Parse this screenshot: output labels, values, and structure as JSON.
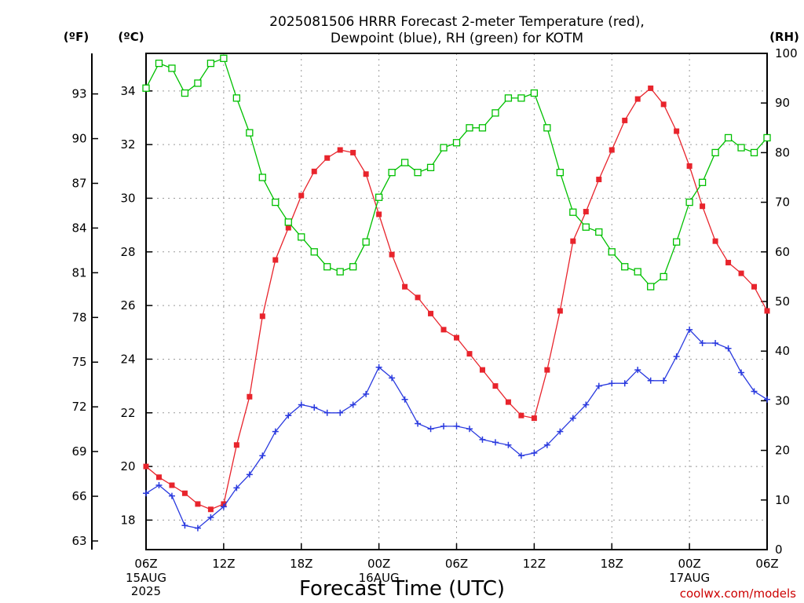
{
  "chart_data": {
    "type": "line",
    "title_lines": [
      "2025081506 HRRR Forecast 2-meter Temperature (red),",
      "Dewpoint (blue), RH (green) for KOTM"
    ],
    "xlabel": "Forecast Time (UTC)",
    "credit": "coolwx.com/models",
    "units": {
      "fahrenheit": "(ºF)",
      "celsius": "(ºC)",
      "rh": "(RH)"
    },
    "x_forecast_hours": [
      0,
      48
    ],
    "x_ticks": [
      {
        "hour": 0,
        "label": "06Z",
        "sub": [
          "15AUG",
          "2025"
        ]
      },
      {
        "hour": 6,
        "label": "12Z",
        "sub": []
      },
      {
        "hour": 12,
        "label": "18Z",
        "sub": []
      },
      {
        "hour": 18,
        "label": "00Z",
        "sub": [
          "16AUG"
        ]
      },
      {
        "hour": 24,
        "label": "06Z",
        "sub": []
      },
      {
        "hour": 30,
        "label": "12Z",
        "sub": []
      },
      {
        "hour": 36,
        "label": "18Z",
        "sub": []
      },
      {
        "hour": 42,
        "label": "00Z",
        "sub": [
          "17AUG"
        ]
      },
      {
        "hour": 48,
        "label": "06Z",
        "sub": []
      }
    ],
    "celsius_axis": {
      "range": [
        16.9,
        35.4
      ],
      "ticks": [
        18,
        20,
        22,
        24,
        26,
        28,
        30,
        32,
        34
      ]
    },
    "fahrenheit_axis": {
      "ticks": [
        63,
        66,
        69,
        72,
        75,
        78,
        81,
        84,
        87,
        90,
        93
      ]
    },
    "rh_axis": {
      "range": [
        0,
        100
      ],
      "ticks": [
        0,
        10,
        20,
        30,
        40,
        50,
        60,
        70,
        80,
        90,
        100
      ]
    },
    "series": [
      {
        "name": "Temperature",
        "axis": "celsius",
        "color": "#e8242c",
        "marker": "filled-square",
        "values": [
          20.0,
          19.6,
          19.3,
          19.0,
          18.6,
          18.4,
          18.6,
          20.8,
          22.6,
          25.6,
          27.7,
          28.9,
          30.1,
          31.0,
          31.5,
          31.8,
          31.7,
          30.9,
          29.4,
          27.9,
          26.7,
          26.3,
          25.7,
          25.1,
          24.8,
          24.2,
          23.6,
          23.0,
          22.4,
          21.9,
          21.8,
          23.6,
          25.8,
          28.4,
          29.5,
          30.7,
          31.8,
          32.9,
          33.7,
          34.1,
          33.5,
          32.5,
          31.2,
          29.7,
          28.4,
          27.6,
          27.2,
          26.7,
          25.8
        ]
      },
      {
        "name": "Dewpoint",
        "axis": "celsius",
        "color": "#2a3adf",
        "marker": "plus",
        "values": [
          19.0,
          19.3,
          18.9,
          17.8,
          17.7,
          18.1,
          18.5,
          19.2,
          19.7,
          20.4,
          21.3,
          21.9,
          22.3,
          22.2,
          22.0,
          22.0,
          22.3,
          22.7,
          23.7,
          23.3,
          22.5,
          21.6,
          21.4,
          21.5,
          21.5,
          21.4,
          21.0,
          20.9,
          20.8,
          20.4,
          20.5,
          20.8,
          21.3,
          21.8,
          22.3,
          23.0,
          23.1,
          23.1,
          23.6,
          23.2,
          23.2,
          24.1,
          25.1,
          24.6,
          24.6,
          24.4,
          23.5,
          22.8,
          22.5
        ]
      },
      {
        "name": "RH",
        "axis": "rh",
        "color": "#00c000",
        "marker": "open-square",
        "values": [
          93,
          98,
          97,
          92,
          94,
          98,
          99,
          91,
          84,
          75,
          70,
          66,
          63,
          60,
          57,
          56,
          57,
          62,
          71,
          76,
          78,
          76,
          77,
          81,
          82,
          85,
          85,
          88,
          91,
          91,
          92,
          85,
          76,
          68,
          65,
          64,
          60,
          57,
          56,
          53,
          55,
          62,
          70,
          74,
          80,
          83,
          81,
          80,
          83
        ]
      }
    ]
  }
}
